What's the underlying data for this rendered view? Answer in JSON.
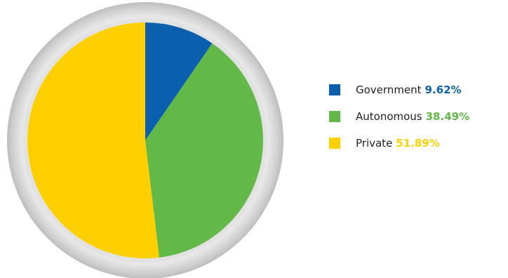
{
  "chart_data": {
    "type": "pie",
    "categories": [
      "Government",
      "Autonomous",
      "Private"
    ],
    "values": [
      9.62,
      38.49,
      51.89
    ],
    "value_labels": [
      "9.62%",
      "38.49%",
      "51.89%"
    ],
    "colors": [
      "#0a60ae",
      "#62b947",
      "#fed000"
    ],
    "legend_position": "right",
    "start_angle": "12 o'clock",
    "direction": "clockwise"
  }
}
